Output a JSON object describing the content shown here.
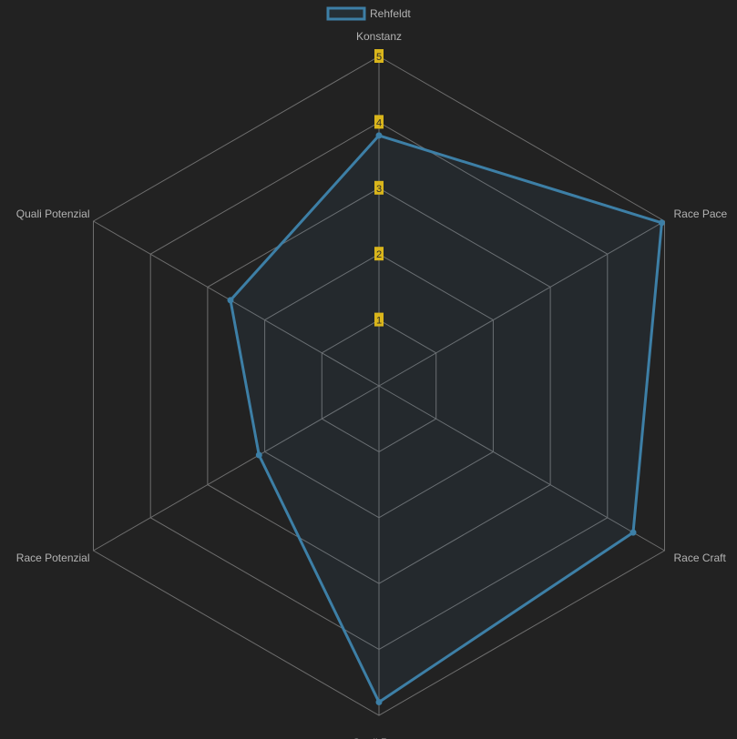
{
  "chart_data": {
    "type": "radar",
    "labels": [
      "Konstanz",
      "Race Pace",
      "Race Craft",
      "Quali Pace",
      "Race Potenzial",
      "Quali Potenzial"
    ],
    "series": [
      {
        "name": "Rehfeldt",
        "values": [
          3.8,
          4.95,
          4.45,
          4.8,
          2.1,
          2.6
        ],
        "color": "#3d7fa6"
      }
    ],
    "r_min": 0,
    "r_max": 5,
    "ticks": [
      "1",
      "2",
      "3",
      "4",
      "5"
    ],
    "legend_position": "top",
    "colors": {
      "background": "#222222",
      "grid": "#6e6e6e",
      "tick_badge": "#d9b51b"
    }
  }
}
